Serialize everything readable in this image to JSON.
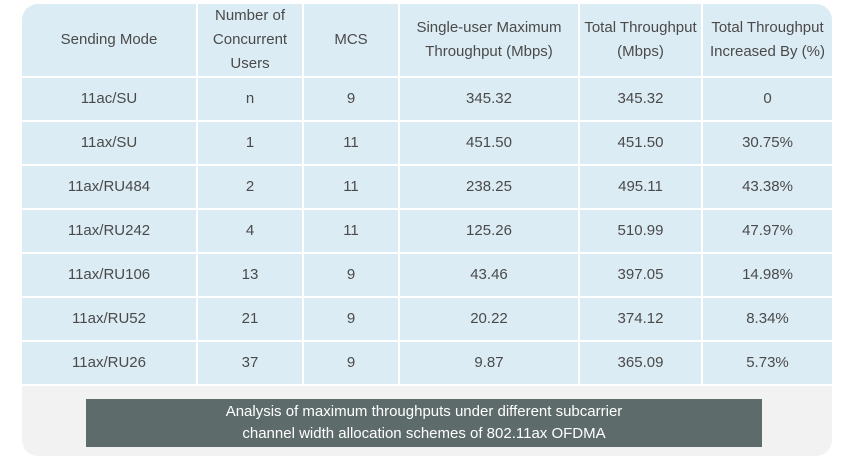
{
  "table": {
    "headers": [
      "Sending Mode",
      "Number of Concurrent Users",
      "MCS",
      "Single-user Maximum Throughput (Mbps)",
      "Total Throughput (Mbps)",
      "Total Throughput Increased By (%)"
    ],
    "rows": [
      [
        "11ac/SU",
        "n",
        "9",
        "345.32",
        "345.32",
        "0"
      ],
      [
        "11ax/SU",
        "1",
        "11",
        "451.50",
        "451.50",
        "30.75%"
      ],
      [
        "11ax/RU484",
        "2",
        "11",
        "238.25",
        "495.11",
        "43.38%"
      ],
      [
        "11ax/RU242",
        "4",
        "11",
        "125.26",
        "510.99",
        "47.97%"
      ],
      [
        "11ax/RU106",
        "13",
        "9",
        "43.46",
        "397.05",
        "14.98%"
      ],
      [
        "11ax/RU52",
        "21",
        "9",
        "20.22",
        "374.12",
        "8.34%"
      ],
      [
        "11ax/RU26",
        "37",
        "9",
        "9.87",
        "365.09",
        "5.73%"
      ]
    ]
  },
  "caption": {
    "line1": "Analysis of maximum throughputs under different subcarrier",
    "line2": "channel width allocation schemes of 802.11ax OFDMA"
  },
  "colors": {
    "cell_background": "#dcecf4",
    "card_background": "#f2f2f2",
    "caption_background": "#5e6b6b",
    "text": "#4a4a4a"
  }
}
